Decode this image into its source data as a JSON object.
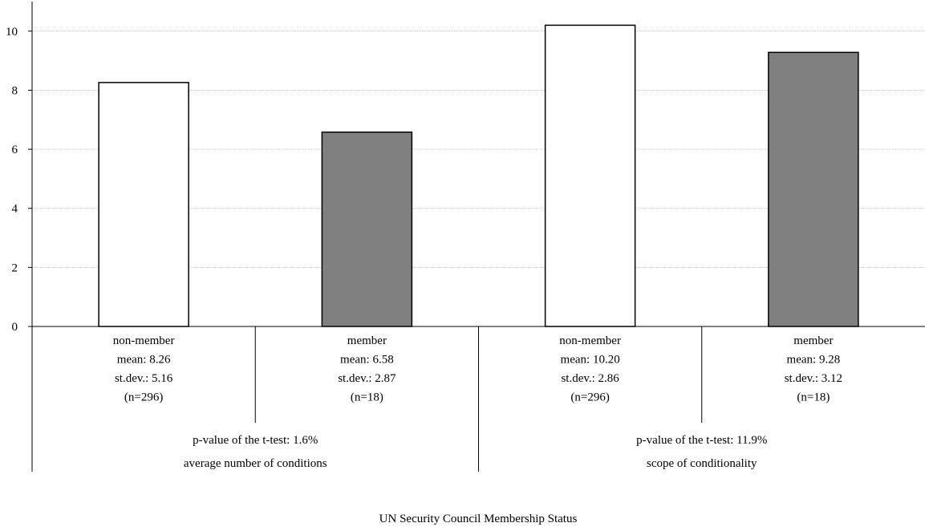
{
  "chart_data": {
    "type": "bar",
    "title": "",
    "xlabel": "UN Security Council Membership Status",
    "ylabel": "",
    "ylim": [
      0,
      11
    ],
    "yticks": [
      0,
      2,
      4,
      6,
      8,
      10
    ],
    "grid": true,
    "legend": "none",
    "colors": {
      "non-member": "#ffffff",
      "member": "#808080",
      "grid": "#c0c0c0",
      "axis": "#000000"
    },
    "groups": [
      {
        "label": "average number of conditions",
        "p_value_text": "p-value of the t-test: 1.6%",
        "bars": [
          {
            "category": "non-member",
            "value": 8.26,
            "mean_text": "mean: 8.26",
            "sd_text": "st.dev.: 5.16",
            "n_text": "(n=296)"
          },
          {
            "category": "member",
            "value": 6.58,
            "mean_text": "mean: 6.58",
            "sd_text": "st.dev.: 2.87",
            "n_text": "(n=18)"
          }
        ]
      },
      {
        "label": "scope of conditionality",
        "p_value_text": "p-value of the t-test: 11.9%",
        "bars": [
          {
            "category": "non-member",
            "value": 10.2,
            "mean_text": "mean: 10.20",
            "sd_text": "st.dev.: 2.86",
            "n_text": "(n=296)"
          },
          {
            "category": "member",
            "value": 9.28,
            "mean_text": "mean: 9.28",
            "sd_text": "st.dev.: 3.12",
            "n_text": "(n=18)"
          }
        ]
      }
    ]
  }
}
